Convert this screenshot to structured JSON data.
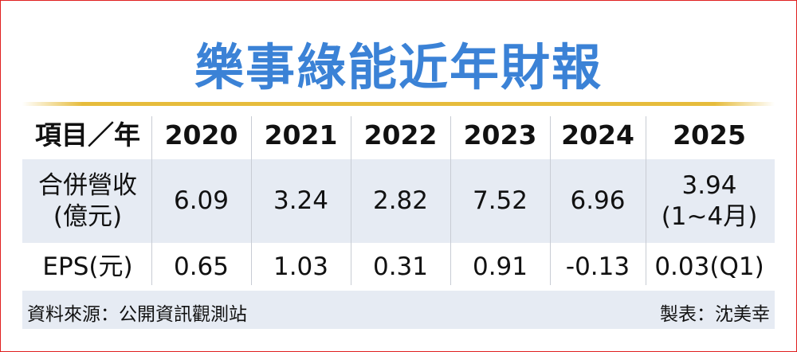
{
  "title": "樂事綠能近年財報",
  "table": {
    "header": [
      "項目／年",
      "2020",
      "2021",
      "2022",
      "2023",
      "2024",
      "2025"
    ],
    "rows": [
      [
        [
          "合併營收",
          "(億元)"
        ],
        "6.09",
        "3.24",
        "2.82",
        "7.52",
        "6.96",
        [
          "3.94",
          "(1~4月)"
        ]
      ],
      [
        "EPS(元)",
        "0.65",
        "1.03",
        "0.31",
        "0.91",
        "-0.13",
        "0.03(Q1)"
      ]
    ]
  },
  "footer": {
    "source": "資料來源：公開資訊觀測站",
    "credit": "製表：沈美幸"
  }
}
